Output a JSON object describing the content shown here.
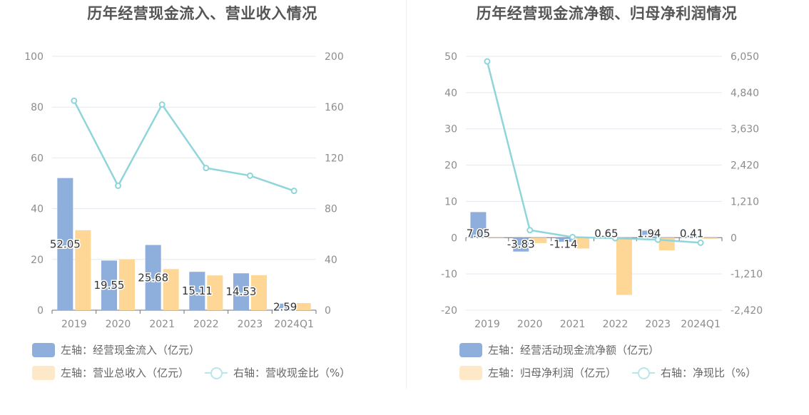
{
  "colors": {
    "bar_blue": "#8eaedb",
    "bar_orange": "#fed797",
    "line_teal": "#8fd5da",
    "grid": "#e6e8f2",
    "axis_text": "#8c8c8c",
    "legend_orange_swatch": "#fde9c7"
  },
  "left": {
    "title": "历年经营现金流入、营业收入情况",
    "legend": {
      "blue": "左轴：经营现金流入（亿元）",
      "orange": "左轴：营业总收入（亿元）",
      "line": "右轴：营收现金比（%）"
    }
  },
  "right": {
    "title": "历年经营现金流净额、归母净利润情况",
    "legend": {
      "blue": "左轴：经营活动现金流净额（亿元）",
      "orange": "左轴：归母净利润（亿元）",
      "line": "右轴：净现比（%）"
    }
  },
  "chart_data": [
    {
      "type": "bar",
      "title": "历年经营现金流入、营业收入情况",
      "categories": [
        "2019",
        "2020",
        "2021",
        "2022",
        "2023",
        "2024Q1"
      ],
      "y_left": {
        "ticks": [
          "0",
          "20",
          "40",
          "60",
          "80",
          "100"
        ],
        "range": [
          0,
          100
        ]
      },
      "y_right": {
        "ticks": [
          "0",
          "40",
          "80",
          "120",
          "160",
          "200"
        ],
        "range": [
          0,
          200
        ]
      },
      "series": [
        {
          "name": "左轴：经营现金流入（亿元）",
          "axis": "left",
          "values": [
            52.05,
            19.55,
            25.68,
            15.11,
            14.53,
            2.59
          ],
          "labels": [
            "52.05",
            "19.55",
            "25.68",
            "15.11",
            "14.53",
            "2.59"
          ],
          "color": "#8eaedb"
        },
        {
          "name": "左轴：营业总收入（亿元）",
          "axis": "left",
          "values": [
            31.5,
            20.0,
            16.2,
            13.7,
            13.8,
            2.8
          ],
          "color": "#fed797"
        },
        {
          "name": "右轴：营收现金比（%）",
          "axis": "right",
          "type": "line",
          "values": [
            165,
            98,
            162,
            112,
            106,
            94
          ],
          "color": "#8fd5da"
        }
      ],
      "grid": true,
      "legend_position": "bottom-left"
    },
    {
      "type": "bar",
      "title": "历年经营现金流净额、归母净利润情况",
      "categories": [
        "2019",
        "2020",
        "2021",
        "2022",
        "2023",
        "2024Q1"
      ],
      "y_left": {
        "ticks": [
          "-20",
          "-10",
          "0",
          "10",
          "20",
          "30",
          "40",
          "50"
        ],
        "range": [
          -20,
          50
        ]
      },
      "y_right": {
        "ticks": [
          "-2,420",
          "-1,210",
          "0",
          "1,210",
          "2,420",
          "3,630",
          "4,840",
          "6,050"
        ],
        "range": [
          -2420,
          6050
        ]
      },
      "series": [
        {
          "name": "左轴：经营活动现金流净额（亿元）",
          "axis": "left",
          "values": [
            7.05,
            -3.83,
            -1.14,
            0.65,
            1.94,
            0.41
          ],
          "labels": [
            "7.05",
            "-3.83",
            "-1.14",
            "0.65",
            "1.94",
            "0.41"
          ],
          "color": "#8eaedb"
        },
        {
          "name": "左轴：归母净利润（亿元）",
          "axis": "left",
          "values": [
            0.1,
            -1.5,
            -3.0,
            -15.8,
            -3.5,
            -0.3
          ],
          "color": "#fed797"
        },
        {
          "name": "右轴：净现比（%）",
          "axis": "right",
          "type": "line",
          "values": [
            5880,
            250,
            20,
            -20,
            -70,
            -170
          ],
          "color": "#8fd5da"
        }
      ],
      "grid": true,
      "legend_position": "bottom-left"
    }
  ]
}
